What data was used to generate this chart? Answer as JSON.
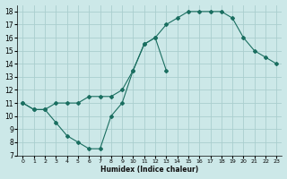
{
  "line1_x": [
    0,
    1,
    2,
    3,
    4,
    5,
    6,
    7,
    8,
    9,
    10,
    11,
    12,
    13
  ],
  "line1_y": [
    11,
    10.5,
    10.5,
    9.5,
    8.5,
    8,
    7.5,
    7.5,
    10,
    11,
    13.5,
    15.5,
    16,
    13.5
  ],
  "line2_x": [
    0,
    1,
    2,
    3,
    4,
    5,
    6,
    7,
    8,
    9,
    10,
    11,
    12,
    13,
    14,
    15,
    16,
    17,
    18,
    19,
    20,
    21,
    22,
    23
  ],
  "line2_y": [
    11,
    10.5,
    10.5,
    11,
    11,
    11,
    11.5,
    11.5,
    11.5,
    12,
    13.5,
    15.5,
    16,
    17,
    17.5,
    18,
    18,
    18,
    18,
    17.5,
    16,
    15,
    14.5,
    14
  ],
  "bg_color": "#cce8e8",
  "grid_color": "#aacece",
  "line_color": "#1a6e60",
  "xlabel": "Humidex (Indice chaleur)",
  "xlim": [
    -0.5,
    23.5
  ],
  "ylim": [
    7,
    18.5
  ],
  "yticks": [
    7,
    8,
    9,
    10,
    11,
    12,
    13,
    14,
    15,
    16,
    17,
    18
  ],
  "xticks": [
    0,
    1,
    2,
    3,
    4,
    5,
    6,
    7,
    8,
    9,
    10,
    11,
    12,
    13,
    14,
    15,
    16,
    17,
    18,
    19,
    20,
    21,
    22,
    23
  ]
}
